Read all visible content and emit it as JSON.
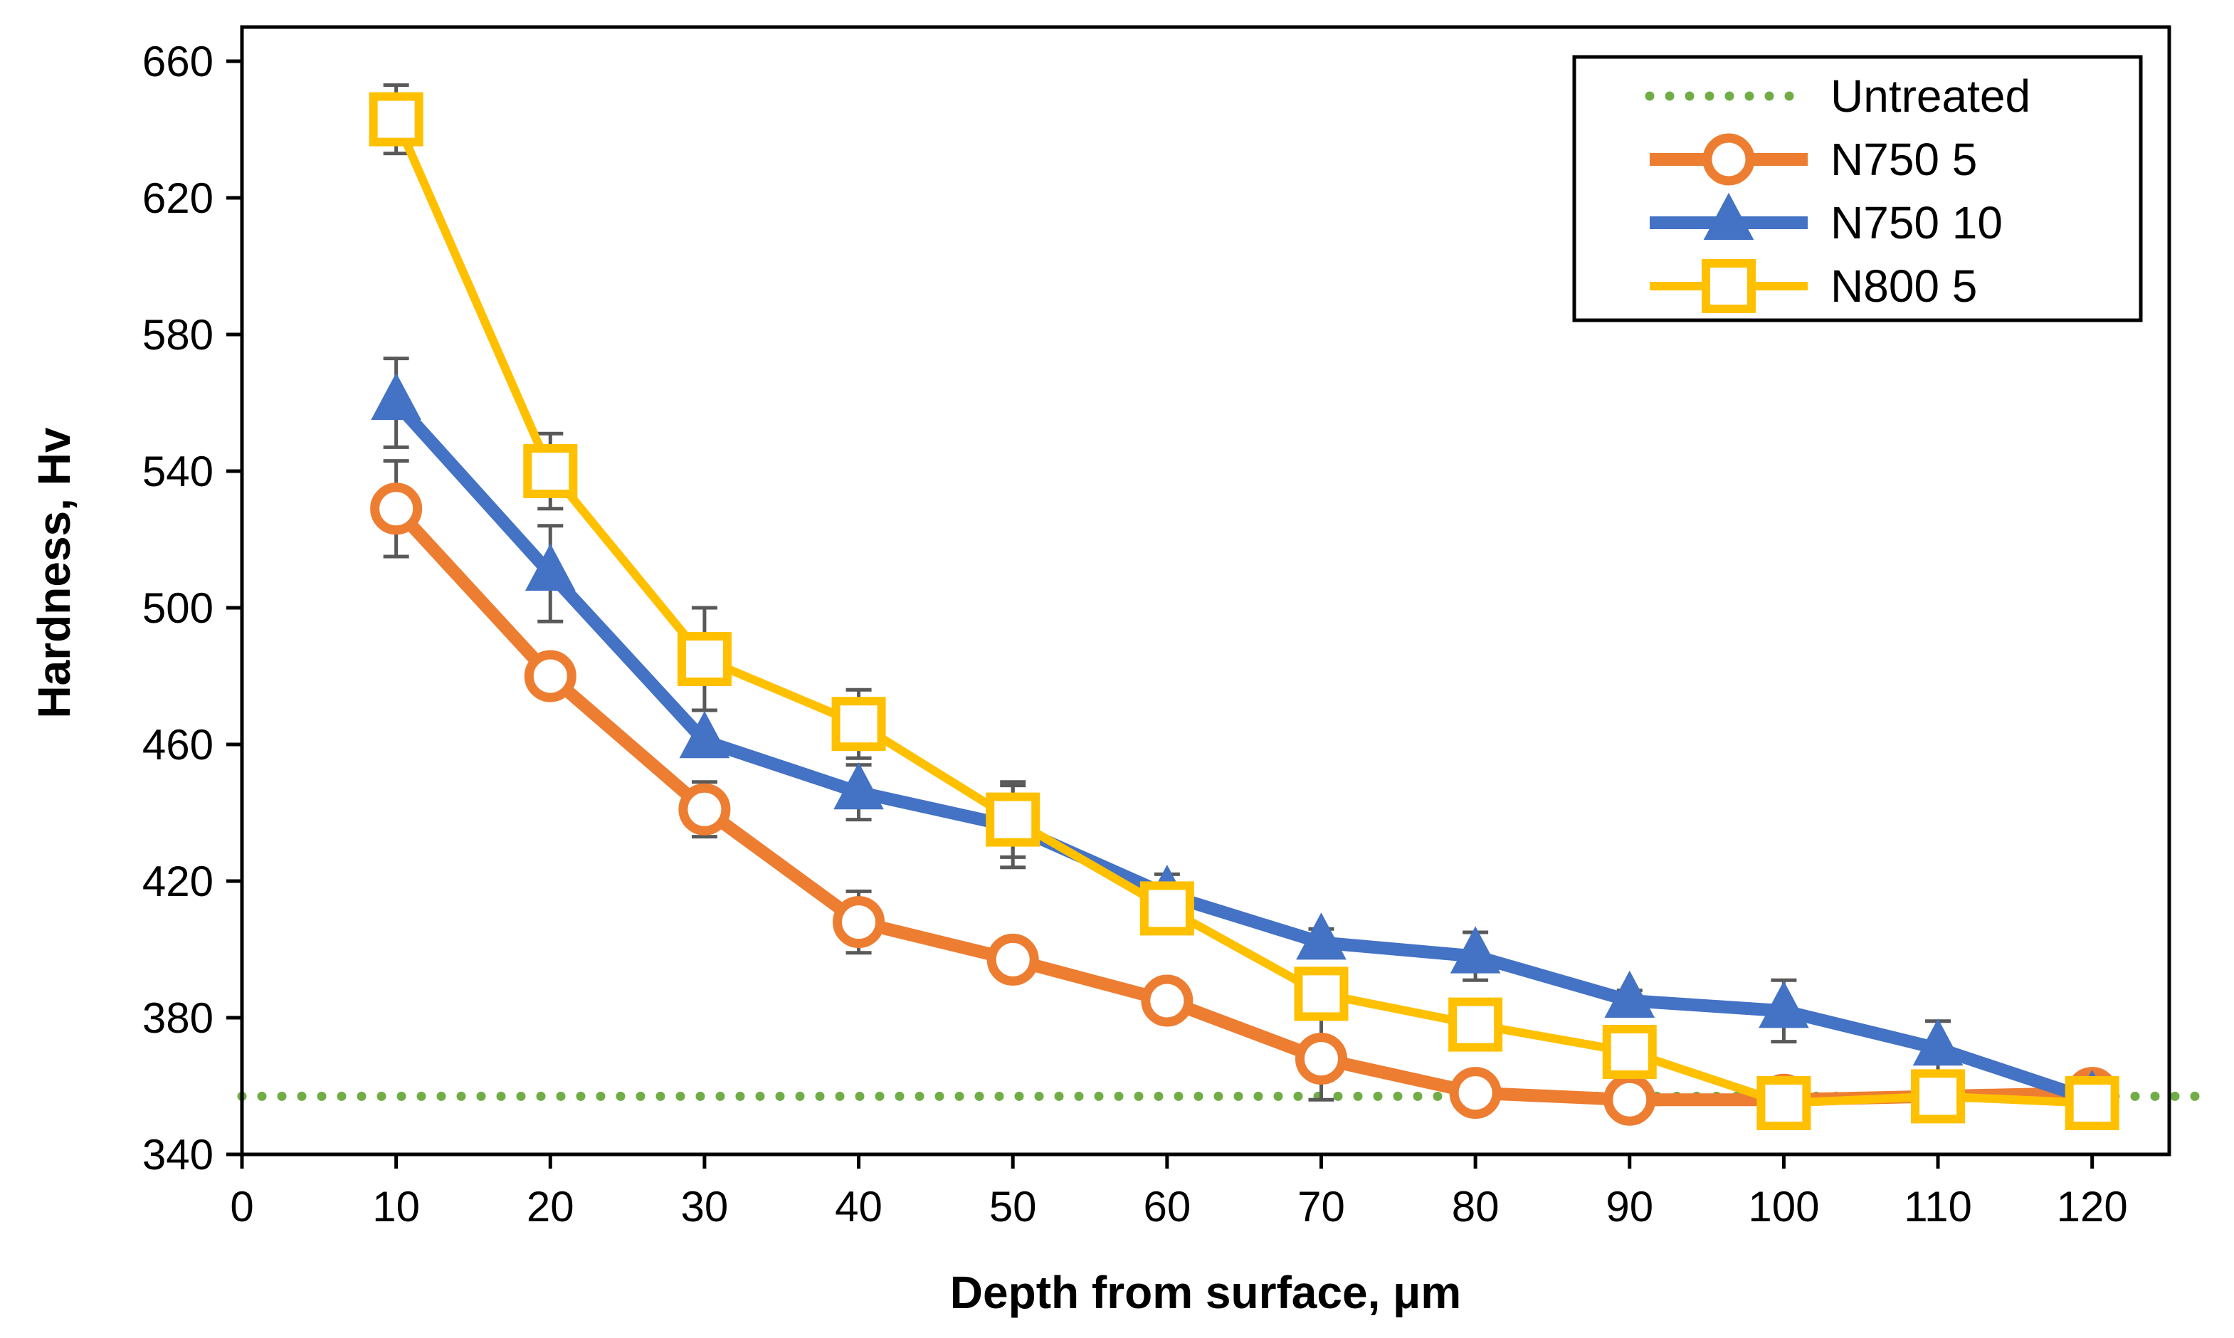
{
  "chart_data": {
    "type": "line",
    "title": "",
    "xlabel": "Depth from surface, μm",
    "ylabel": "Hardness, Hv",
    "xlim": [
      0,
      125
    ],
    "ylim": [
      340,
      670
    ],
    "xticks": [
      0,
      10,
      20,
      30,
      40,
      50,
      60,
      70,
      80,
      90,
      100,
      110,
      120
    ],
    "yticks": [
      340,
      380,
      420,
      460,
      500,
      540,
      580,
      620,
      660
    ],
    "x": [
      10,
      20,
      30,
      40,
      50,
      60,
      70,
      80,
      90,
      100,
      110,
      120
    ],
    "legend_position": "top-right",
    "reference_lines": [
      {
        "name": "Untreated",
        "value": 357,
        "color": "#70AD47",
        "style": "dotted"
      }
    ],
    "series": [
      {
        "name": "N750 5",
        "color": "#ED7D31",
        "marker": "circle",
        "values": [
          529,
          480,
          441,
          408,
          397,
          385,
          368,
          358,
          356,
          356,
          357,
          358
        ],
        "errors": [
          14,
          0,
          8,
          9,
          0,
          0,
          12,
          0,
          0,
          0,
          0,
          0
        ]
      },
      {
        "name": "N750 10",
        "color": "#4472C4",
        "marker": "triangle",
        "values": [
          560,
          510,
          461,
          446,
          436,
          416,
          402,
          398,
          385,
          382,
          371,
          356
        ],
        "errors": [
          13,
          14,
          0,
          8,
          12,
          6,
          4,
          7,
          3,
          9,
          8,
          0
        ]
      },
      {
        "name": "N800 5",
        "color": "#FFC000",
        "marker": "square",
        "values": [
          643,
          540,
          485,
          466,
          438,
          412,
          387,
          378,
          370,
          355,
          357,
          355
        ],
        "errors": [
          10,
          11,
          15,
          10,
          11,
          6,
          7,
          0,
          0,
          0,
          0,
          0
        ]
      }
    ]
  }
}
